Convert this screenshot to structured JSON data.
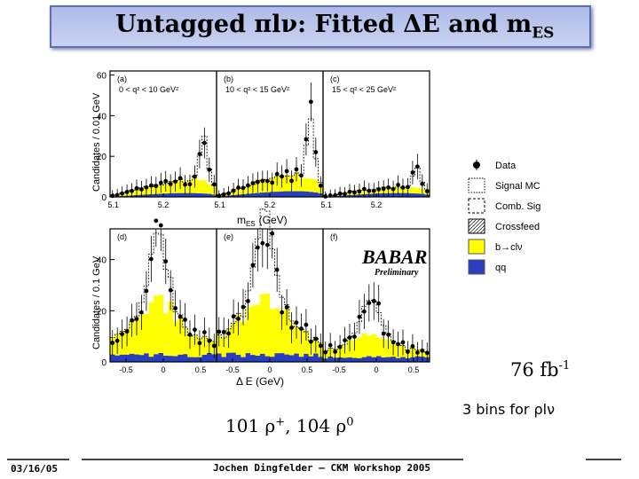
{
  "slide": {
    "title_main": "Untagged πlν: Fitted ΔE and m",
    "title_sub": "ES",
    "luminosity_value": "76 fb",
    "luminosity_exp": "-1",
    "bins_note": "3 bins for ρlν",
    "counts_a": "101 ρ",
    "counts_a_sup": "+",
    "counts_b": ", 104 ρ",
    "counts_b_sup": "0",
    "footer_date": "03/16/05",
    "footer_center": "Jochen Dingfelder – CKM Workshop 2005"
  },
  "figure": {
    "top_ylabel": "Candidates / 0.01 GeV",
    "bottom_ylabel": "Candidates / 0.1 GeV",
    "top_xlabel": "m",
    "top_xlabel_sub": "ES",
    "top_xlabel_unit": "(GeV)",
    "bottom_xlabel": "Δ E (GeV)",
    "top_yticks": [
      "60",
      "40",
      "20",
      "0"
    ],
    "bottom_yticks": [
      "40",
      "20",
      "0"
    ],
    "top_xticks": [
      "5.1",
      "5.2"
    ],
    "bottom_xticks": [
      "-0.5",
      "0",
      "0.5"
    ],
    "panels": [
      {
        "tag": "(a)",
        "range": "0 < q² < 10 GeV²"
      },
      {
        "tag": "(b)",
        "range": "10 < q² < 15 GeV²"
      },
      {
        "tag": "(c)",
        "range": "15 < q² < 25 GeV²"
      },
      {
        "tag": "(d)",
        "range": ""
      },
      {
        "tag": "(e)",
        "range": ""
      },
      {
        "tag": "(f)",
        "range": ""
      }
    ],
    "watermark_main": "BABAR",
    "watermark_sub": "Preliminary",
    "legend": [
      {
        "label": "Data",
        "style": "marker"
      },
      {
        "label": "Signal MC",
        "style": "dotted-box"
      },
      {
        "label": "Comb. Sig",
        "style": "dashed-box"
      },
      {
        "label": "Crossfeed",
        "style": "hatched-box"
      },
      {
        "label": "b→clν",
        "style": "yellow"
      },
      {
        "label": "qq",
        "style": "blue"
      }
    ],
    "colors": {
      "bclnu": "#ffff00",
      "qq": "#2a3fc0",
      "data": "#000000"
    }
  }
}
